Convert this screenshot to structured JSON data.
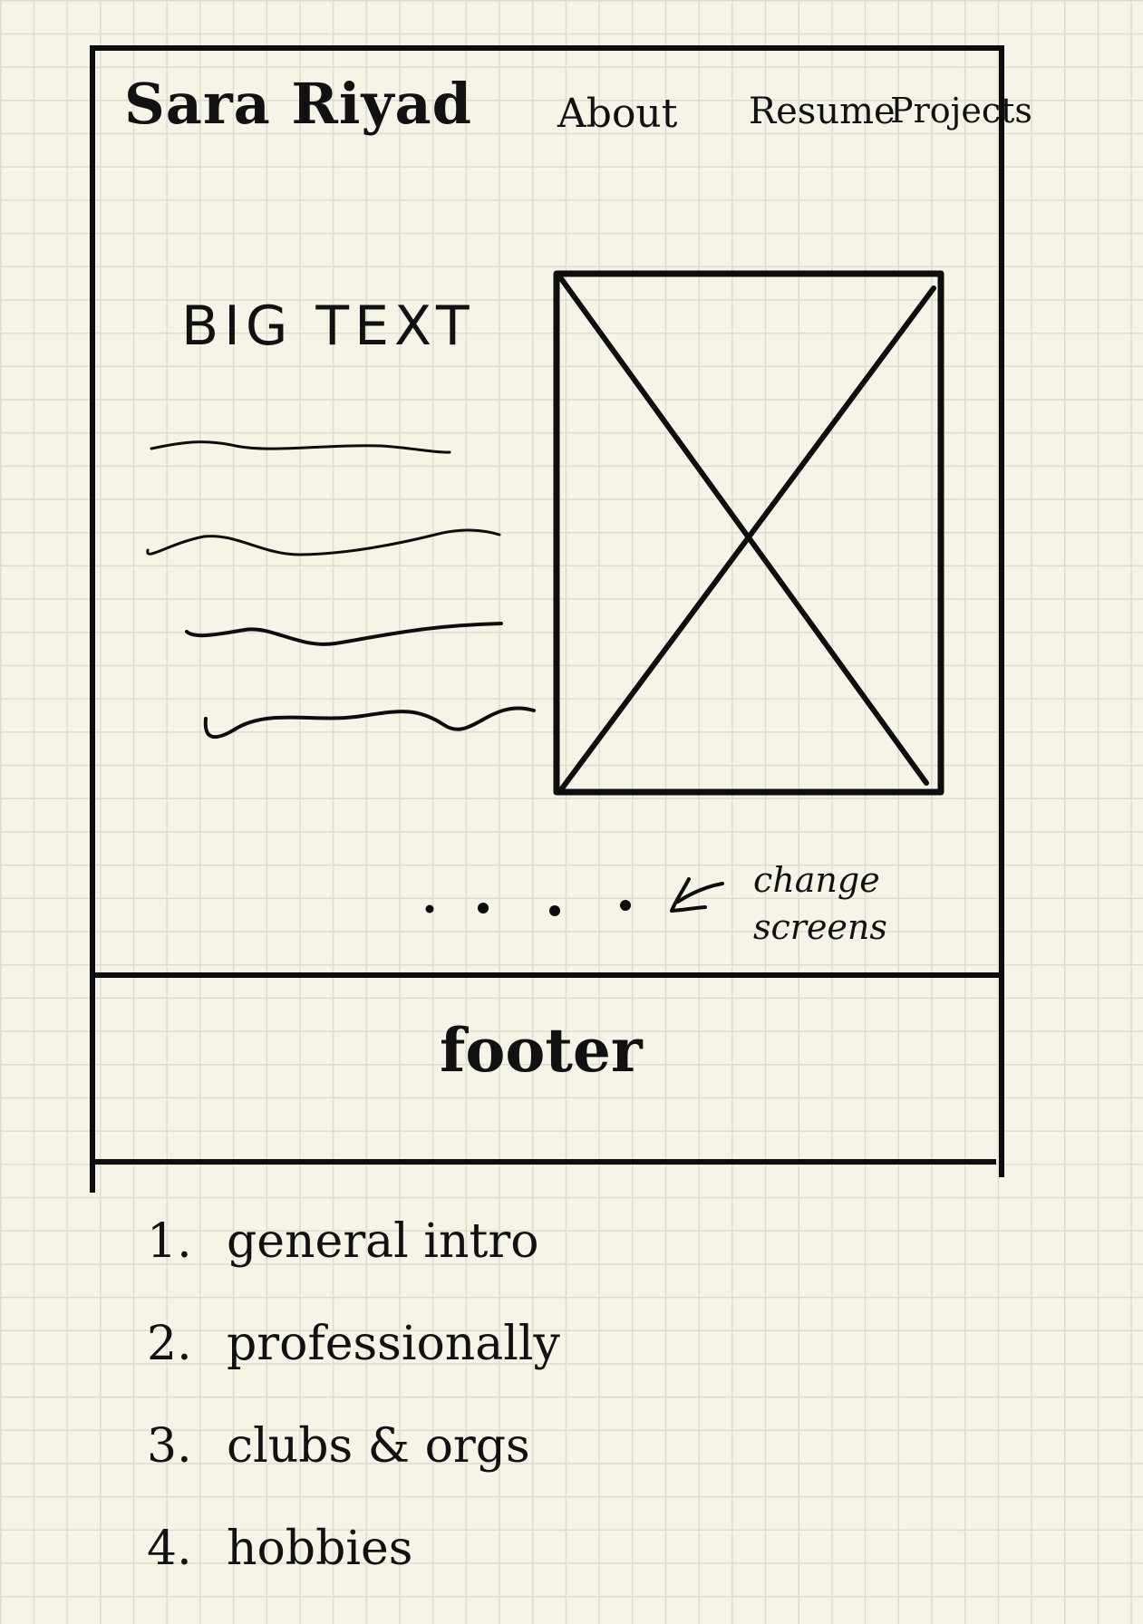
{
  "header": {
    "brand": "Sara Riyad",
    "nav": [
      {
        "label": "About"
      },
      {
        "label": "Resume"
      },
      {
        "label": "Projects"
      }
    ]
  },
  "hero": {
    "heading": "BIG TEXT",
    "image_placeholder": "image-placeholder-x-box"
  },
  "carousel": {
    "dot_count": 4,
    "note": [
      "change",
      "screens"
    ]
  },
  "footer": {
    "label": "footer"
  },
  "sections_list": [
    {
      "num": "1.",
      "label": "general intro"
    },
    {
      "num": "2.",
      "label": "professionally"
    },
    {
      "num": "3.",
      "label": "clubs & orgs"
    },
    {
      "num": "4.",
      "label": "hobbies"
    }
  ],
  "colors": {
    "paper": "#f6f4e7",
    "grid": "#dcdccf",
    "ink": "#0d0d0d"
  }
}
